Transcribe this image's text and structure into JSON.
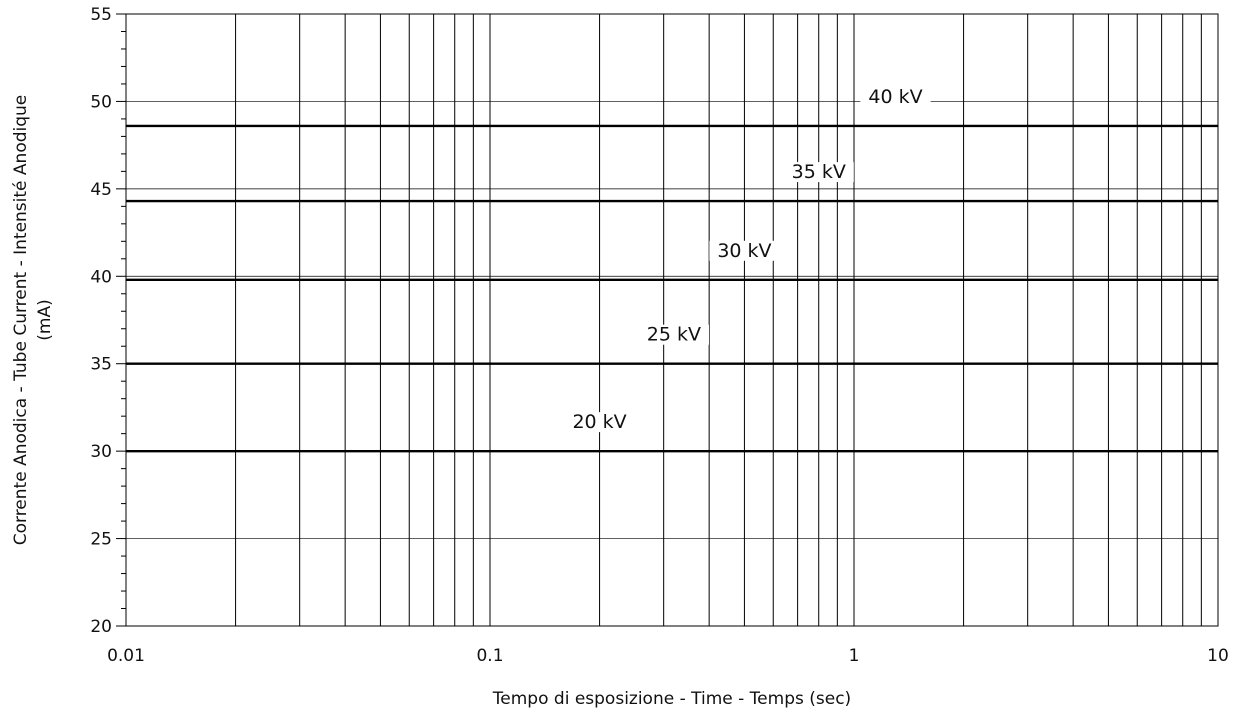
{
  "chart_data": {
    "type": "line",
    "xscale": "log",
    "xlim": [
      0.01,
      10
    ],
    "ylim": [
      20,
      55
    ],
    "grid": true,
    "xlabel": "Tempo di esposizione - Time - Temps  (sec)",
    "ylabel_lines": [
      "Corrente Anodica - Tube Current - Intensité Anodique",
      "(mA)"
    ],
    "x_ticks": [
      {
        "value": 0.01,
        "label": "0.01"
      },
      {
        "value": 0.1,
        "label": "0.1"
      },
      {
        "value": 1,
        "label": "1"
      },
      {
        "value": 10,
        "label": "10"
      }
    ],
    "y_ticks": [
      {
        "value": 20,
        "label": "20"
      },
      {
        "value": 25,
        "label": "25"
      },
      {
        "value": 30,
        "label": "30"
      },
      {
        "value": 35,
        "label": "35"
      },
      {
        "value": 40,
        "label": "40"
      },
      {
        "value": 45,
        "label": "45"
      },
      {
        "value": 50,
        "label": "50"
      },
      {
        "value": 55,
        "label": "55"
      }
    ],
    "series": [
      {
        "name": "20 kV",
        "x": [
          0.01,
          10
        ],
        "y": [
          30,
          30
        ],
        "label_x": 0.2
      },
      {
        "name": "25 kV",
        "x": [
          0.01,
          10
        ],
        "y": [
          35,
          35
        ],
        "label_x": 0.32
      },
      {
        "name": "30 kV",
        "x": [
          0.01,
          10
        ],
        "y": [
          39.8,
          39.8
        ],
        "label_x": 0.5
      },
      {
        "name": "35 kV",
        "x": [
          0.01,
          10
        ],
        "y": [
          44.3,
          44.3
        ],
        "label_x": 0.8
      },
      {
        "name": "40 kV",
        "x": [
          0.01,
          10
        ],
        "y": [
          48.6,
          48.6
        ],
        "label_x": 1.3
      }
    ]
  }
}
